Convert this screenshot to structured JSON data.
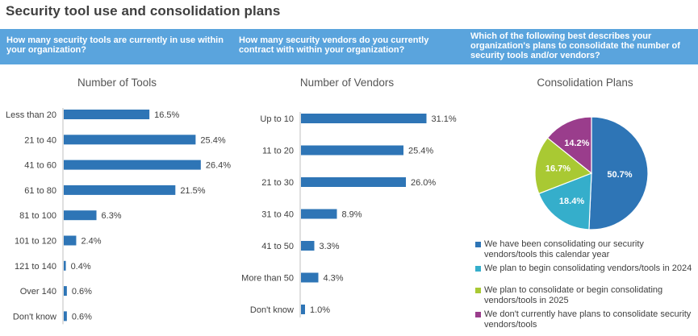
{
  "page": {
    "title": "Security tool use and consolidation plans"
  },
  "questions": {
    "q1": "How many security tools are currently in use within your organization?",
    "q2": "How many security vendors do you currently contract with within your organization?",
    "q3": "Which of the following best describes your organization's plans to consolidate the number of security tools and/or vendors?"
  },
  "colors": {
    "banner": "#5aa4dd",
    "bar": "#2e75b6",
    "slice1": "#2e75b6",
    "slice2": "#35aecb",
    "slice3": "#a9c933",
    "slice4": "#9a3d8c"
  },
  "chart_data": [
    {
      "type": "bar",
      "orientation": "horizontal",
      "title": "Number of Tools",
      "categories": [
        "Less than 20",
        "21 to 40",
        "41 to 60",
        "61 to 80",
        "81 to 100",
        "101 to 120",
        "121 to 140",
        "Over 140",
        "Don't know"
      ],
      "values": [
        16.5,
        25.4,
        26.4,
        21.5,
        6.3,
        2.4,
        0.4,
        0.6,
        0.6
      ],
      "labels": [
        "16.5%",
        "25.4%",
        "26.4%",
        "21.5%",
        "6.3%",
        "2.4%",
        "0.4%",
        "0.6%",
        "0.6%"
      ],
      "xlim": [
        0,
        30
      ],
      "grid": false
    },
    {
      "type": "bar",
      "orientation": "horizontal",
      "title": "Number of Vendors",
      "categories": [
        "Up to 10",
        "11 to 20",
        "21 to 30",
        "31 to 40",
        "41 to 50",
        "More than 50",
        "Don't know"
      ],
      "values": [
        31.1,
        25.4,
        26.0,
        8.9,
        3.3,
        4.3,
        1.0
      ],
      "labels": [
        "31.1%",
        "25.4%",
        "26.0%",
        "8.9%",
        "3.3%",
        "4.3%",
        "1.0%"
      ],
      "xlim": [
        0,
        35
      ],
      "grid": false
    },
    {
      "type": "pie",
      "title": "Consolidation Plans",
      "categories": [
        "We have been consolidating our security vendors/tools this calendar year",
        "We plan to begin consolidating vendors/tools in 2024",
        "We plan to consolidate or begin consolidating vendors/tools in 2025",
        "We don't currently have plans to consolidate security vendors/tools"
      ],
      "values": [
        50.7,
        18.4,
        16.7,
        14.2
      ],
      "labels": [
        "50.7%",
        "18.4%",
        "16.7%",
        "14.2%"
      ],
      "legend": "bottom"
    }
  ]
}
